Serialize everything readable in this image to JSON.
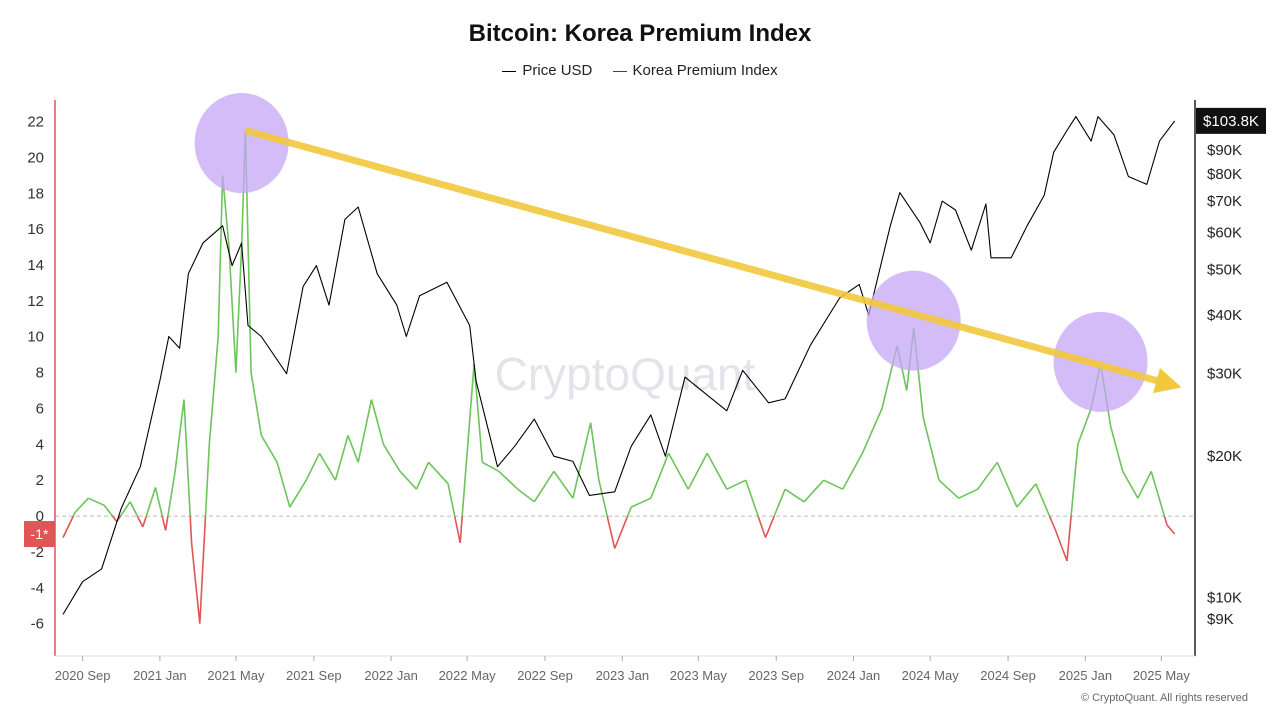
{
  "title": "Bitcoin: Korea Premium Index",
  "legend": [
    {
      "name": "Price USD",
      "color": "#000000"
    },
    {
      "name": "Korea Premium Index",
      "color": "#3b2fd6"
    }
  ],
  "watermark": "CryptoQuant",
  "copyright": "© CryptoQuant. All rights reserved",
  "current_index_label": "-1*",
  "current_price_label": "$103.8K",
  "colors": {
    "price": "#000000",
    "premium_positive": "#6cc45a",
    "premium_negative": "#e05555",
    "trend_arrow": "#f2c83c",
    "highlight_circle": "#c5a6f7",
    "left_axis": "#e05555",
    "right_axis": "#222222"
  },
  "chart_data": {
    "type": "line",
    "title": "Bitcoin: Korea Premium Index",
    "x_tick_labels": [
      "2020 Sep",
      "2021 Jan",
      "2021 May",
      "2021 Sep",
      "2022 Jan",
      "2022 May",
      "2022 Sep",
      "2023 Jan",
      "2023 May",
      "2023 Sep",
      "2024 Jan",
      "2024 May",
      "2024 Sep",
      "2025 Jan",
      "2025 May"
    ],
    "x_range": [
      "2020-08",
      "2025-06"
    ],
    "left_axis": {
      "ticks": [
        -6,
        -4,
        -2,
        0,
        2,
        4,
        6,
        8,
        10,
        12,
        14,
        16,
        18,
        20,
        22
      ],
      "range": [
        -7.8,
        23.2
      ]
    },
    "right_axis": {
      "scale": "log",
      "ticks": [
        {
          "label": "$9K",
          "value": 9000
        },
        {
          "label": "$10K",
          "value": 10000
        },
        {
          "label": "$20K",
          "value": 20000
        },
        {
          "label": "$30K",
          "value": 30000
        },
        {
          "label": "$40K",
          "value": 40000
        },
        {
          "label": "$50K",
          "value": 50000
        },
        {
          "label": "$60K",
          "value": 60000
        },
        {
          "label": "$70K",
          "value": 70000
        },
        {
          "label": "$80K",
          "value": 80000
        },
        {
          "label": "$90K",
          "value": 90000
        }
      ],
      "range": [
        7500,
        115000
      ]
    },
    "series": [
      {
        "name": "Price USD",
        "axis": "right",
        "points": [
          [
            "2020-08-01",
            9200
          ],
          [
            "2020-09-01",
            10800
          ],
          [
            "2020-10-01",
            11500
          ],
          [
            "2020-11-01",
            15500
          ],
          [
            "2020-12-01",
            19000
          ],
          [
            "2021-01-01",
            29000
          ],
          [
            "2021-01-15",
            36000
          ],
          [
            "2021-02-01",
            34000
          ],
          [
            "2021-02-15",
            49000
          ],
          [
            "2021-03-10",
            57000
          ],
          [
            "2021-04-10",
            62000
          ],
          [
            "2021-04-25",
            51000
          ],
          [
            "2021-05-10",
            57000
          ],
          [
            "2021-05-20",
            38000
          ],
          [
            "2021-06-10",
            36000
          ],
          [
            "2021-07-20",
            30000
          ],
          [
            "2021-08-15",
            46000
          ],
          [
            "2021-09-05",
            51000
          ],
          [
            "2021-09-25",
            42000
          ],
          [
            "2021-10-20",
            64000
          ],
          [
            "2021-11-10",
            68000
          ],
          [
            "2021-12-10",
            49000
          ],
          [
            "2022-01-10",
            42000
          ],
          [
            "2022-01-25",
            36000
          ],
          [
            "2022-02-15",
            44000
          ],
          [
            "2022-03-30",
            47000
          ],
          [
            "2022-05-05",
            38000
          ],
          [
            "2022-05-15",
            29000
          ],
          [
            "2022-06-18",
            19000
          ],
          [
            "2022-07-15",
            21000
          ],
          [
            "2022-08-15",
            24000
          ],
          [
            "2022-09-15",
            20000
          ],
          [
            "2022-10-15",
            19500
          ],
          [
            "2022-11-10",
            16500
          ],
          [
            "2022-12-20",
            16800
          ],
          [
            "2023-01-15",
            21000
          ],
          [
            "2023-02-15",
            24500
          ],
          [
            "2023-03-10",
            20000
          ],
          [
            "2023-04-10",
            29500
          ],
          [
            "2023-05-15",
            27000
          ],
          [
            "2023-06-15",
            25000
          ],
          [
            "2023-07-10",
            30500
          ],
          [
            "2023-08-20",
            26000
          ],
          [
            "2023-09-15",
            26500
          ],
          [
            "2023-10-25",
            34500
          ],
          [
            "2023-12-10",
            43500
          ],
          [
            "2024-01-10",
            46500
          ],
          [
            "2024-01-25",
            40000
          ],
          [
            "2024-02-28",
            62000
          ],
          [
            "2024-03-14",
            73000
          ],
          [
            "2024-04-15",
            63000
          ],
          [
            "2024-05-01",
            57000
          ],
          [
            "2024-05-20",
            70000
          ],
          [
            "2024-06-10",
            67000
          ],
          [
            "2024-07-05",
            55000
          ],
          [
            "2024-07-28",
            69000
          ],
          [
            "2024-08-05",
            53000
          ],
          [
            "2024-09-06",
            53000
          ],
          [
            "2024-10-01",
            62000
          ],
          [
            "2024-10-28",
            72000
          ],
          [
            "2024-11-12",
            89000
          ],
          [
            "2024-12-05",
            100000
          ],
          [
            "2024-12-17",
            106000
          ],
          [
            "2025-01-10",
            94000
          ],
          [
            "2025-01-21",
            106000
          ],
          [
            "2025-02-15",
            97000
          ],
          [
            "2025-03-10",
            79000
          ],
          [
            "2025-04-08",
            76000
          ],
          [
            "2025-04-28",
            94000
          ],
          [
            "2025-05-22",
            103800
          ]
        ]
      },
      {
        "name": "Korea Premium Index",
        "axis": "left",
        "points": [
          [
            "2020-08-01",
            -1.2
          ],
          [
            "2020-08-20",
            0.2
          ],
          [
            "2020-09-10",
            1.0
          ],
          [
            "2020-10-05",
            0.6
          ],
          [
            "2020-10-25",
            -0.3
          ],
          [
            "2020-11-15",
            0.8
          ],
          [
            "2020-12-05",
            -0.6
          ],
          [
            "2020-12-25",
            1.6
          ],
          [
            "2021-01-10",
            -0.8
          ],
          [
            "2021-01-25",
            2.5
          ],
          [
            "2021-02-08",
            6.5
          ],
          [
            "2021-02-20",
            -1.5
          ],
          [
            "2021-03-05",
            -6.0
          ],
          [
            "2021-03-20",
            4.0
          ],
          [
            "2021-04-03",
            10.0
          ],
          [
            "2021-04-10",
            19.0
          ],
          [
            "2021-04-20",
            15.0
          ],
          [
            "2021-05-01",
            8.0
          ],
          [
            "2021-05-10",
            15.0
          ],
          [
            "2021-05-16",
            21.5
          ],
          [
            "2021-05-25",
            8.0
          ],
          [
            "2021-06-10",
            4.5
          ],
          [
            "2021-07-05",
            3.0
          ],
          [
            "2021-07-25",
            0.5
          ],
          [
            "2021-08-20",
            2.0
          ],
          [
            "2021-09-10",
            3.5
          ],
          [
            "2021-10-05",
            2.0
          ],
          [
            "2021-10-25",
            4.5
          ],
          [
            "2021-11-10",
            3.0
          ],
          [
            "2021-12-01",
            6.5
          ],
          [
            "2021-12-20",
            4.0
          ],
          [
            "2022-01-15",
            2.5
          ],
          [
            "2022-02-10",
            1.5
          ],
          [
            "2022-03-01",
            3.0
          ],
          [
            "2022-04-01",
            1.8
          ],
          [
            "2022-04-20",
            -1.5
          ],
          [
            "2022-05-12",
            8.5
          ],
          [
            "2022-05-25",
            3.0
          ],
          [
            "2022-06-20",
            2.5
          ],
          [
            "2022-07-20",
            1.5
          ],
          [
            "2022-08-15",
            0.8
          ],
          [
            "2022-09-15",
            2.5
          ],
          [
            "2022-10-15",
            1.0
          ],
          [
            "2022-11-12",
            5.2
          ],
          [
            "2022-11-25",
            2.0
          ],
          [
            "2022-12-20",
            -1.8
          ],
          [
            "2023-01-15",
            0.5
          ],
          [
            "2023-02-15",
            1.0
          ],
          [
            "2023-03-15",
            3.5
          ],
          [
            "2023-04-15",
            1.5
          ],
          [
            "2023-05-15",
            3.5
          ],
          [
            "2023-06-15",
            1.5
          ],
          [
            "2023-07-15",
            2.0
          ],
          [
            "2023-08-15",
            -1.2
          ],
          [
            "2023-09-15",
            1.5
          ],
          [
            "2023-10-15",
            0.8
          ],
          [
            "2023-11-15",
            2.0
          ],
          [
            "2023-12-15",
            1.5
          ],
          [
            "2024-01-15",
            3.5
          ],
          [
            "2024-02-15",
            6.0
          ],
          [
            "2024-03-10",
            9.5
          ],
          [
            "2024-03-25",
            7.0
          ],
          [
            "2024-04-05",
            10.5
          ],
          [
            "2024-04-20",
            5.5
          ],
          [
            "2024-05-15",
            2.0
          ],
          [
            "2024-06-15",
            1.0
          ],
          [
            "2024-07-15",
            1.5
          ],
          [
            "2024-08-15",
            3.0
          ],
          [
            "2024-09-15",
            0.5
          ],
          [
            "2024-10-15",
            1.8
          ],
          [
            "2024-11-15",
            -0.8
          ],
          [
            "2024-12-03",
            -2.5
          ],
          [
            "2024-12-20",
            4.0
          ],
          [
            "2025-01-10",
            6.0
          ],
          [
            "2025-01-25",
            8.5
          ],
          [
            "2025-02-10",
            5.0
          ],
          [
            "2025-03-01",
            2.5
          ],
          [
            "2025-03-25",
            1.0
          ],
          [
            "2025-04-15",
            2.5
          ],
          [
            "2025-05-10",
            -0.5
          ],
          [
            "2025-05-22",
            -1.0
          ]
        ]
      }
    ],
    "annotations": {
      "trend_arrow": {
        "from": [
          "2021-05-16",
          21.5
        ],
        "to": [
          "2025-05-31",
          7.5
        ]
      },
      "highlights": [
        {
          "center": [
            "2021-05-10",
            20.8
          ]
        },
        {
          "center": [
            "2024-04-05",
            10.9
          ]
        },
        {
          "center": [
            "2025-01-25",
            8.6
          ]
        }
      ]
    }
  }
}
